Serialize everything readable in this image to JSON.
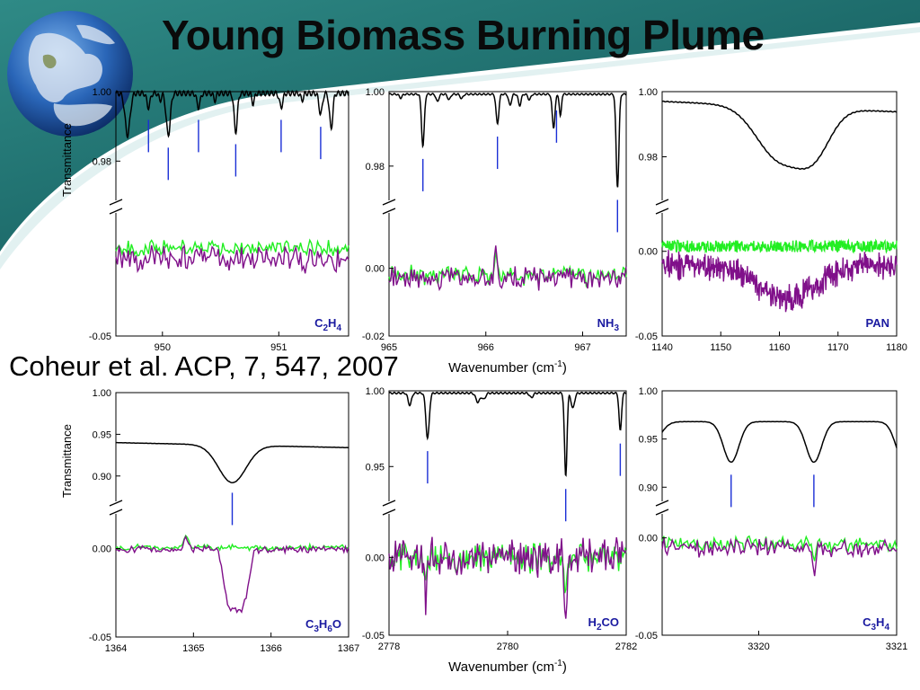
{
  "title": "Young Biomass Burning Plume",
  "citation": "Coheur et al. ACP, 7, 547, 2007",
  "colors": {
    "observed": "#80108a",
    "simulated": "#22ee22",
    "reference": "#000000",
    "marker": "#1a2fd6",
    "label": "#1a1aa0"
  },
  "chart_data": [
    {
      "type": "line",
      "panel": "top-left",
      "species_label": [
        "C",
        "2",
        "H",
        "4"
      ],
      "xlim": [
        949.6,
        951.6
      ],
      "xticks": [
        "950",
        "951"
      ],
      "xtick_values": [
        950,
        951
      ],
      "ylabel": "Transmittance",
      "upper": {
        "ylim": [
          0.97,
          1.0
        ],
        "yticks": [
          "1.00",
          "0.98"
        ],
        "ytick_values": [
          1.0,
          0.98
        ],
        "lines": [
          949.88,
          950.05,
          950.31,
          950.63,
          951.02,
          951.36
        ]
      },
      "lower": {
        "ylim": [
          -0.05,
          0.02
        ],
        "yticks": [
          "-0.05"
        ],
        "ytick_values": [
          -0.05
        ]
      }
    },
    {
      "type": "line",
      "panel": "top-middle",
      "species_label": [
        "NH",
        "3"
      ],
      "xlim": [
        965,
        967.45
      ],
      "xticks": [
        "965",
        "966",
        "967"
      ],
      "xtick_values": [
        965,
        966,
        967
      ],
      "xlabel": "Wavenumber (cm-1)",
      "upper": {
        "ylim": [
          0.972,
          1.0
        ],
        "yticks": [
          "1.00",
          "0.98"
        ],
        "ytick_values": [
          1.0,
          0.98
        ],
        "lines": [
          965.35,
          966.12,
          966.73,
          967.36
        ]
      },
      "lower": {
        "ylim": [
          -0.02,
          0.015
        ],
        "yticks": [
          "0.00",
          "-0.02"
        ],
        "ytick_values": [
          0.0,
          -0.02
        ]
      }
    },
    {
      "type": "line",
      "panel": "top-right",
      "species_label": [
        "PAN"
      ],
      "xlim": [
        1140,
        1180
      ],
      "xticks": [
        "1140",
        "1150",
        "1160",
        "1170",
        "1180"
      ],
      "xtick_values": [
        1140,
        1150,
        1160,
        1170,
        1180
      ],
      "upper": {
        "ylim": [
          0.968,
          1.0
        ],
        "yticks": [
          "1.00",
          "0.98"
        ],
        "ytick_values": [
          1.0,
          0.98
        ],
        "lines": []
      },
      "lower": {
        "ylim": [
          -0.05,
          0.02
        ],
        "yticks": [
          "0.00",
          "-0.05"
        ],
        "ytick_values": [
          0.0,
          -0.05
        ]
      }
    },
    {
      "type": "line",
      "panel": "bottom-left",
      "species_label": [
        "C",
        "3",
        "H",
        "6",
        "O"
      ],
      "xlim": [
        1364,
        1367
      ],
      "xticks": [
        "1364",
        "1365",
        "1366",
        "1367"
      ],
      "xtick_values": [
        1364,
        1365,
        1366,
        1367
      ],
      "ylabel": "Transmittance",
      "upper": {
        "ylim": [
          0.875,
          1.0
        ],
        "yticks": [
          "1.00",
          "0.95",
          "0.90"
        ],
        "ytick_values": [
          1.0,
          0.95,
          0.9
        ],
        "lines": [
          1365.5
        ]
      },
      "lower": {
        "ylim": [
          -0.05,
          0.017
        ],
        "yticks": [
          "0.00",
          "-0.05"
        ],
        "ytick_values": [
          0.0,
          -0.05
        ]
      }
    },
    {
      "type": "line",
      "panel": "bottom-middle",
      "species_label": [
        "H",
        "2",
        "CO"
      ],
      "xlim": [
        2778,
        2782
      ],
      "xticks": [
        "2778",
        "2780",
        "2782"
      ],
      "xtick_values": [
        2778,
        2780,
        2782
      ],
      "xlabel": "Wavenumber (cm-1)",
      "upper": {
        "ylim": [
          0.93,
          1.0
        ],
        "yticks": [
          "1.00",
          "0.95"
        ],
        "ytick_values": [
          1.0,
          0.95
        ],
        "lines": [
          2778.65,
          2780.98,
          2781.9
        ]
      },
      "lower": {
        "ylim": [
          -0.05,
          0.025
        ],
        "yticks": [
          "0.00",
          "-0.05"
        ],
        "ytick_values": [
          0.0,
          -0.05
        ]
      }
    },
    {
      "type": "line",
      "panel": "bottom-right",
      "species_label": [
        "C",
        "3",
        "H",
        "4"
      ],
      "xlim": [
        3319.3,
        3321
      ],
      "xticks": [
        "3320",
        "3321"
      ],
      "xtick_values": [
        3320,
        3321
      ],
      "upper": {
        "ylim": [
          0.89,
          1.0
        ],
        "yticks": [
          "1.00",
          "0.95",
          "0.90"
        ],
        "ytick_values": [
          1.0,
          0.95,
          0.9
        ],
        "lines": [
          3319.8,
          3320.4
        ]
      },
      "lower": {
        "ylim": [
          -0.05,
          0.01
        ],
        "yticks": [
          "0.00",
          "-0.05"
        ],
        "ytick_values": [
          0.0,
          -0.05
        ]
      }
    }
  ]
}
